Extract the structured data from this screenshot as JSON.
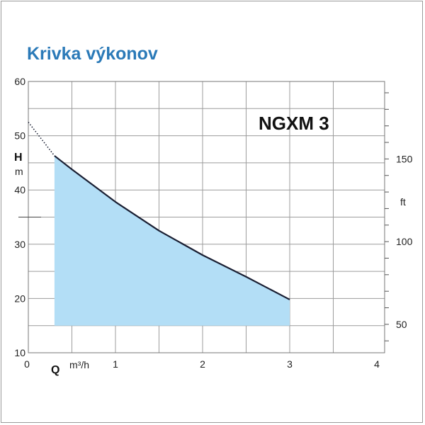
{
  "title": "Krivka výkonov",
  "model_label": "NGXM 3",
  "chart_data": {
    "type": "area",
    "title": "Krivka výkonov",
    "x_symbol": "Q",
    "x_unit": "m³/h",
    "y_symbol": "H",
    "y_unit": "m",
    "y2_unit": "ft",
    "xlim": [
      0,
      4
    ],
    "ylim": [
      10,
      60
    ],
    "x_ticks": [
      0,
      1,
      2,
      3,
      4
    ],
    "y_ticks": [
      10,
      20,
      30,
      40,
      50,
      60
    ],
    "y2_ticks": [
      50,
      100,
      150
    ],
    "grid": true,
    "series": [
      {
        "x": [
          0.3,
          0.5,
          1.0,
          1.5,
          2.0,
          2.5,
          3.0
        ],
        "y": [
          46.3,
          43.8,
          37.8,
          32.5,
          28.0,
          24.0,
          19.8
        ]
      }
    ],
    "extrapolated": {
      "x": [
        0.0,
        0.3
      ],
      "y": [
        52.5,
        46.3
      ]
    },
    "area_color": "#b3def6",
    "line_color": "#1a1f33"
  }
}
